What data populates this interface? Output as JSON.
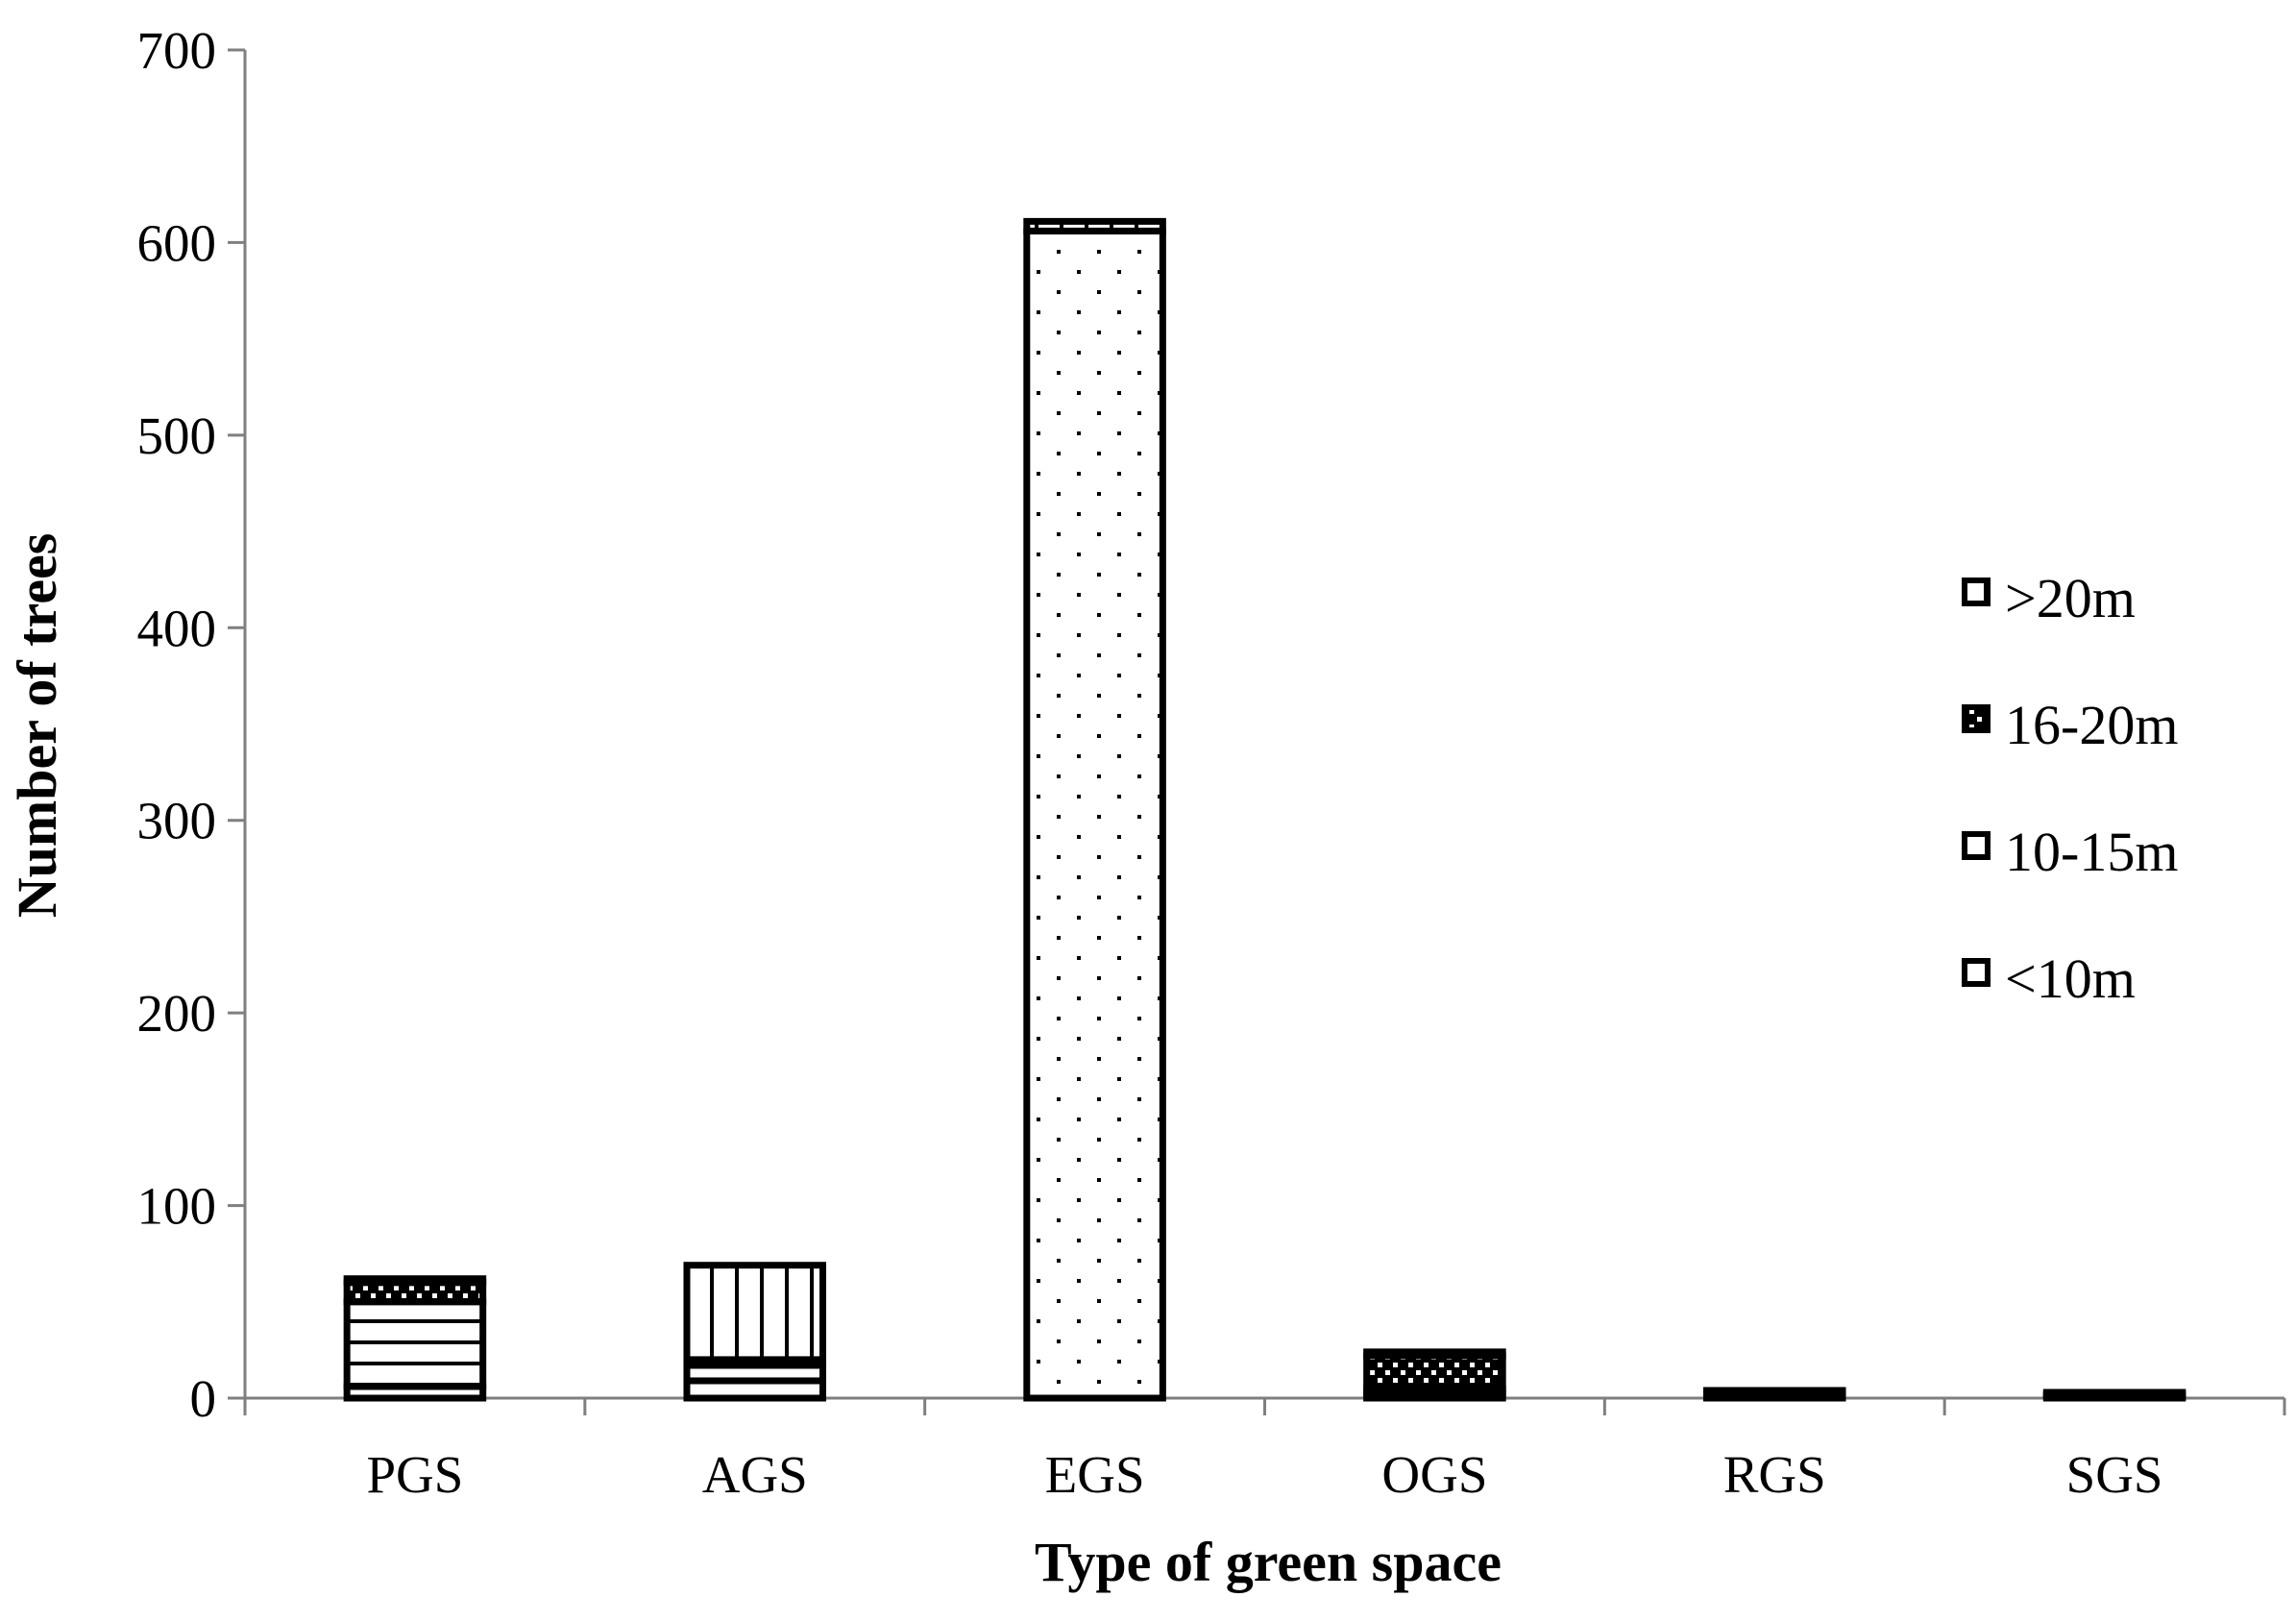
{
  "chart_data": {
    "type": "bar",
    "stacked": true,
    "title": "",
    "xlabel": "Type of green space",
    "ylabel": "Number of trees",
    "categories": [
      "PGS",
      "AGS",
      "EGS",
      "OGS",
      "RGS",
      "SGS"
    ],
    "ylim": [
      0,
      700
    ],
    "yticks": [
      0,
      100,
      200,
      300,
      400,
      500,
      600,
      700
    ],
    "grid": false,
    "legend_position": "right",
    "series": [
      {
        "name": "<10m",
        "pattern": "dots",
        "values": [
          6,
          9,
          606,
          2,
          2,
          1
        ]
      },
      {
        "name": "10-15m",
        "pattern": "horizontal-lines",
        "values": [
          44,
          8,
          0,
          3,
          1,
          1
        ]
      },
      {
        "name": "16-20m",
        "pattern": "dense-dots",
        "values": [
          10,
          3,
          0,
          17,
          1,
          1
        ]
      },
      {
        "name": ">20m",
        "pattern": "vertical-lines",
        "values": [
          2,
          49,
          5,
          2,
          0,
          0
        ]
      }
    ],
    "legend_order": [
      ">20m",
      "16-20m",
      "10-15m",
      "<10m"
    ]
  }
}
